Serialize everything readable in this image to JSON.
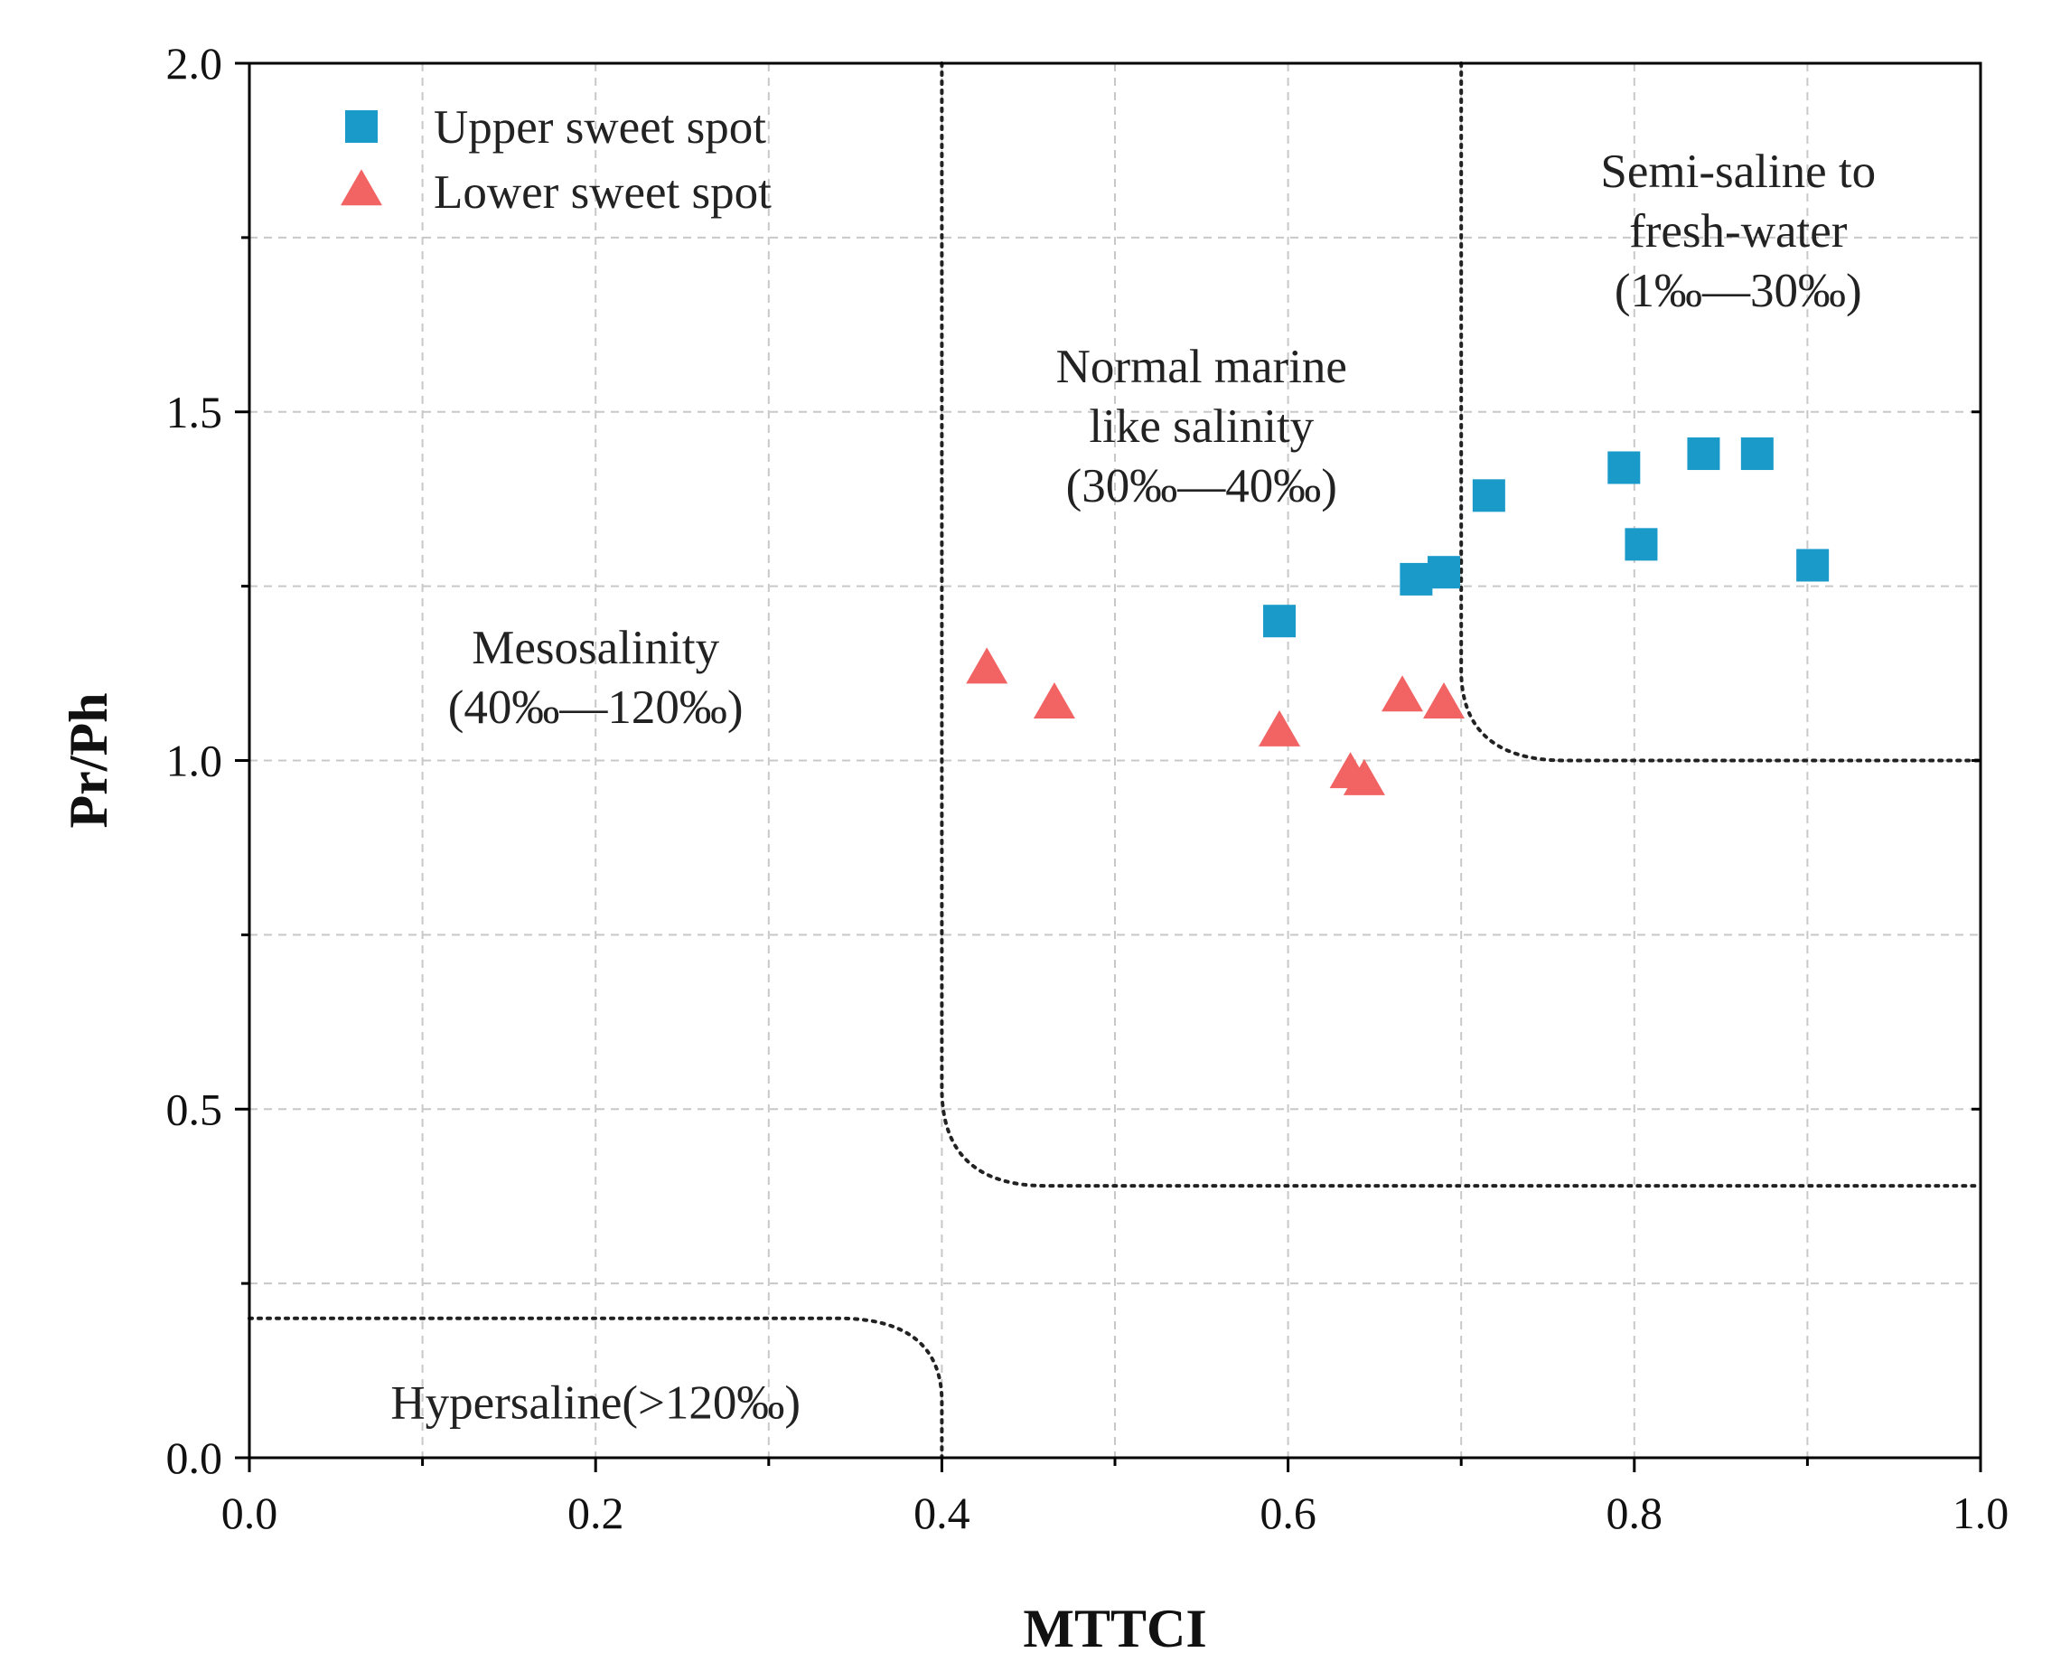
{
  "chart_data": {
    "type": "scatter",
    "xlabel": "MTTCI",
    "ylabel": "Pr/Ph",
    "xlim": [
      0.0,
      1.0
    ],
    "ylim": [
      0.0,
      2.0
    ],
    "x_ticks": [
      "0.0",
      "0.2",
      "0.4",
      "0.6",
      "0.8",
      "1.0"
    ],
    "y_ticks": [
      "0.0",
      "0.5",
      "1.0",
      "1.5",
      "2.0"
    ],
    "grid": true,
    "legend_position": "top-left",
    "series": [
      {
        "name": "Upper sweet spot",
        "marker": "square",
        "color": "#1a9ac9",
        "points": [
          {
            "x": 0.595,
            "y": 1.2
          },
          {
            "x": 0.674,
            "y": 1.26
          },
          {
            "x": 0.69,
            "y": 1.27
          },
          {
            "x": 0.716,
            "y": 1.38
          },
          {
            "x": 0.794,
            "y": 1.42
          },
          {
            "x": 0.804,
            "y": 1.31
          },
          {
            "x": 0.84,
            "y": 1.44
          },
          {
            "x": 0.871,
            "y": 1.44
          },
          {
            "x": 0.903,
            "y": 1.28
          }
        ]
      },
      {
        "name": "Lower sweet spot",
        "marker": "triangle",
        "color": "#f26464",
        "points": [
          {
            "x": 0.426,
            "y": 1.13
          },
          {
            "x": 0.465,
            "y": 1.08
          },
          {
            "x": 0.595,
            "y": 1.04
          },
          {
            "x": 0.636,
            "y": 0.98
          },
          {
            "x": 0.644,
            "y": 0.97
          },
          {
            "x": 0.666,
            "y": 1.09
          },
          {
            "x": 0.69,
            "y": 1.08
          }
        ]
      }
    ],
    "boundaries": [
      {
        "name": "hypersaline-boundary",
        "segments": [
          [
            0.0,
            0.2
          ],
          [
            0.34,
            0.2
          ],
          [
            0.4,
            0.08
          ],
          [
            0.4,
            0.0
          ]
        ]
      },
      {
        "name": "normal-marine-boundary",
        "segments": [
          [
            0.4,
            2.0
          ],
          [
            0.4,
            0.53
          ],
          [
            0.46,
            0.39
          ],
          [
            1.0,
            0.39
          ]
        ]
      },
      {
        "name": "semi-saline-boundary",
        "segments": [
          [
            0.7,
            2.0
          ],
          [
            0.7,
            1.13
          ],
          [
            0.76,
            1.0
          ],
          [
            1.0,
            1.0
          ]
        ]
      }
    ],
    "annotations": [
      {
        "name": "hypersaline-label",
        "lines": [
          "Hypersaline(>120‰)"
        ],
        "x": 0.2,
        "y": 0.08
      },
      {
        "name": "mesosalinity-label",
        "lines": [
          "Mesosalinity",
          "(40‰—120‰)"
        ],
        "x": 0.2,
        "y": 1.12
      },
      {
        "name": "normal-marine-label",
        "lines": [
          "Normal marine",
          "like salinity",
          "(30‰—40‰)"
        ],
        "x": 0.55,
        "y": 1.48
      },
      {
        "name": "semi-saline-label",
        "lines": [
          "Semi-saline to",
          "fresh-water",
          "(1‰—30‰)"
        ],
        "x": 0.86,
        "y": 1.76
      }
    ]
  }
}
